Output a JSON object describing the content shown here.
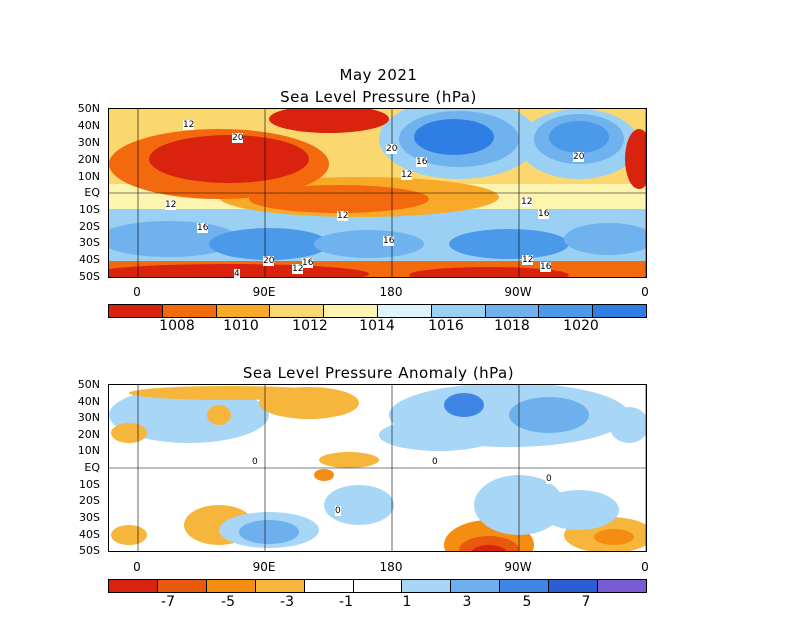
{
  "maps": [
    {
      "title_line1": "May 2021",
      "title_line2": "Sea Level Pressure (hPa)",
      "lat_labels": [
        "50N",
        "40N",
        "30N",
        "20N",
        "10N",
        "EQ",
        "10S",
        "20S",
        "30S",
        "40S",
        "50S"
      ],
      "lon_labels": [
        "0",
        "90E",
        "180",
        "90W",
        "0"
      ],
      "contour_labels": [
        "12",
        "20",
        "16",
        "12",
        "12",
        "12",
        "16",
        "12",
        "16",
        "20",
        "16",
        "12",
        "20",
        "16",
        "4",
        "20",
        "12",
        "16",
        "20",
        "12",
        "16"
      ],
      "colorbar": {
        "colors": [
          "#d9230f",
          "#f26a0d",
          "#f8a928",
          "#fbd770",
          "#fdf4b0",
          "#def4fb",
          "#9ad0f4",
          "#6fb2ee",
          "#4b9ae9",
          "#2e7ee3"
        ],
        "labels": [
          "1008",
          "1010",
          "1012",
          "1014",
          "1016",
          "1018",
          "1020"
        ]
      }
    },
    {
      "title_line1": "Sea Level Pressure Anomaly (hPa)",
      "lat_labels": [
        "50N",
        "40N",
        "30N",
        "20N",
        "10N",
        "EQ",
        "10S",
        "20S",
        "30S",
        "40S",
        "50S"
      ],
      "lon_labels": [
        "0",
        "90E",
        "180",
        "90W",
        "0"
      ],
      "contour_labels": [
        "0",
        "0",
        "0",
        "0"
      ],
      "colorbar": {
        "colors": [
          "#d9230f",
          "#e8580d",
          "#f58d12",
          "#f6b63b",
          "#ffffff",
          "#ffffff",
          "#a8d6f6",
          "#6eb0ee",
          "#3f86e4",
          "#2a5fd3",
          "#7a5bd6"
        ],
        "labels": [
          "-7",
          "-5",
          "-3",
          "-1",
          "1",
          "3",
          "5",
          "7"
        ]
      }
    }
  ]
}
